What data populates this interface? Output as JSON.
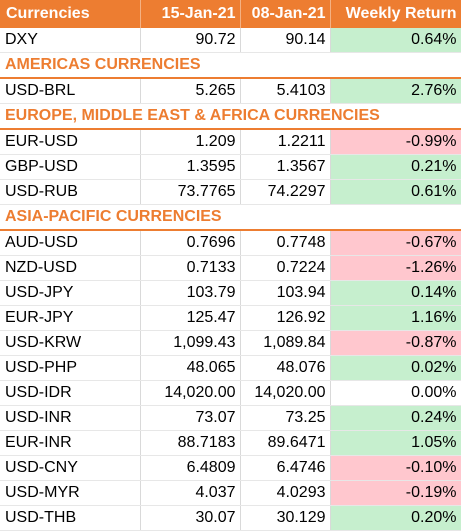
{
  "table": {
    "headers": {
      "currencies": "Currencies",
      "date_1": "15-Jan-21",
      "date_2": "08-Jan-21",
      "weekly_return": "Weekly Return"
    },
    "rows": [
      {
        "type": "data",
        "name": "DXY",
        "v1": "90.72",
        "v2": "90.14",
        "ret": "0.64%",
        "sign": "pos"
      },
      {
        "type": "section",
        "label": "AMERICAS CURRENCIES"
      },
      {
        "type": "data",
        "name": "USD-BRL",
        "v1": "5.265",
        "v2": "5.4103",
        "ret": "2.76%",
        "sign": "pos"
      },
      {
        "type": "section",
        "label": "EUROPE, MIDDLE EAST & AFRICA CURRENCIES"
      },
      {
        "type": "data",
        "name": "EUR-USD",
        "v1": "1.209",
        "v2": "1.2211",
        "ret": "-0.99%",
        "sign": "neg"
      },
      {
        "type": "data",
        "name": "GBP-USD",
        "v1": "1.3595",
        "v2": "1.3567",
        "ret": "0.21%",
        "sign": "pos"
      },
      {
        "type": "data",
        "name": "USD-RUB",
        "v1": "73.7765",
        "v2": "74.2297",
        "ret": "0.61%",
        "sign": "pos"
      },
      {
        "type": "section",
        "label": "ASIA-PACIFIC CURRENCIES"
      },
      {
        "type": "data",
        "name": "AUD-USD",
        "v1": "0.7696",
        "v2": "0.7748",
        "ret": "-0.67%",
        "sign": "neg"
      },
      {
        "type": "data",
        "name": "NZD-USD",
        "v1": "0.7133",
        "v2": "0.7224",
        "ret": "-1.26%",
        "sign": "neg"
      },
      {
        "type": "data",
        "name": "USD-JPY",
        "v1": "103.79",
        "v2": "103.94",
        "ret": "0.14%",
        "sign": "pos"
      },
      {
        "type": "data",
        "name": "EUR-JPY",
        "v1": "125.47",
        "v2": "126.92",
        "ret": "1.16%",
        "sign": "pos"
      },
      {
        "type": "data",
        "name": "USD-KRW",
        "v1": "1,099.43",
        "v2": "1,089.84",
        "ret": "-0.87%",
        "sign": "neg"
      },
      {
        "type": "data",
        "name": "USD-PHP",
        "v1": "48.065",
        "v2": "48.076",
        "ret": "0.02%",
        "sign": "pos"
      },
      {
        "type": "data",
        "name": "USD-IDR",
        "v1": "14,020.00",
        "v2": "14,020.00",
        "ret": "0.00%",
        "sign": "zero"
      },
      {
        "type": "data",
        "name": "USD-INR",
        "v1": "73.07",
        "v2": "73.25",
        "ret": "0.24%",
        "sign": "pos"
      },
      {
        "type": "data",
        "name": "EUR-INR",
        "v1": "88.7183",
        "v2": "89.6471",
        "ret": "1.05%",
        "sign": "pos"
      },
      {
        "type": "data",
        "name": "USD-CNY",
        "v1": "6.4809",
        "v2": "6.4746",
        "ret": "-0.10%",
        "sign": "neg"
      },
      {
        "type": "data",
        "name": "USD-MYR",
        "v1": "4.037",
        "v2": "4.0293",
        "ret": "-0.19%",
        "sign": "neg"
      },
      {
        "type": "data",
        "name": "USD-THB",
        "v1": "30.07",
        "v2": "30.129",
        "ret": "0.20%",
        "sign": "pos"
      }
    ]
  },
  "colors": {
    "header_bg": "#ed7d31",
    "header_text": "#ffffff",
    "section_text": "#ed7d31",
    "positive_bg": "#c6efce",
    "negative_bg": "#ffc7ce"
  }
}
